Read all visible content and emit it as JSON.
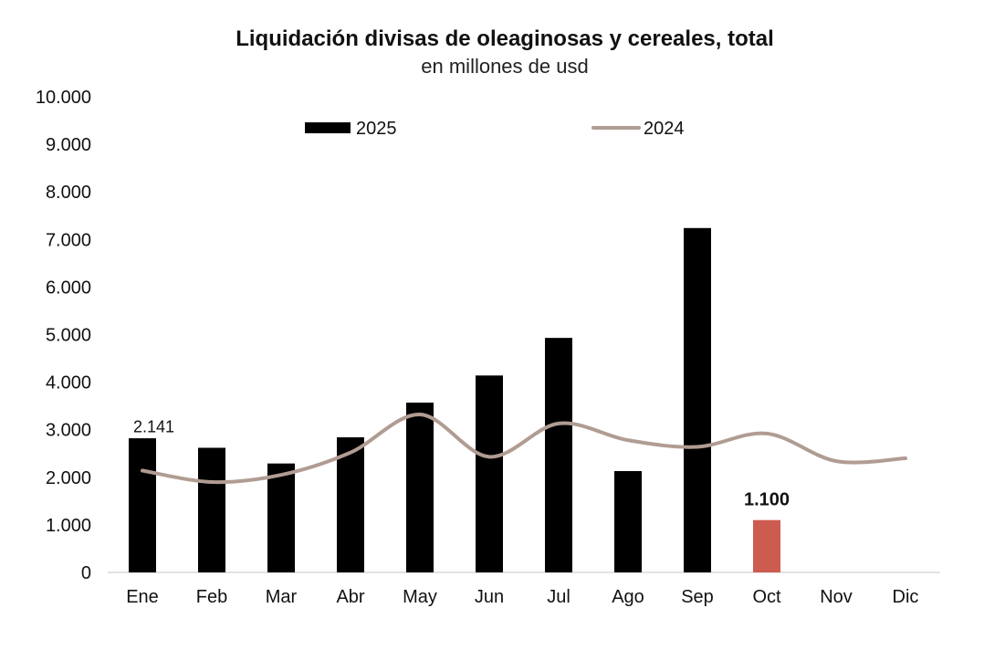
{
  "chart_data": {
    "type": "bar",
    "title": "Liquidación divisas de oleaginosas y cereales, total",
    "subtitle": "en millones de usd",
    "categories": [
      "Ene",
      "Feb",
      "Mar",
      "Abr",
      "May",
      "Jun",
      "Jul",
      "Ago",
      "Sep",
      "Oct",
      "Nov",
      "Dic"
    ],
    "series": [
      {
        "name": "2025",
        "type": "bar",
        "color": "#000000",
        "values": [
          2820,
          2620,
          2290,
          2840,
          3570,
          4140,
          4930,
          2130,
          7240,
          1100,
          null,
          null
        ],
        "highlight": {
          "index": 9,
          "color": "#CD5C50"
        }
      },
      {
        "name": "2024",
        "type": "line",
        "color": "#B09C92",
        "values": [
          2141,
          1900,
          2050,
          2520,
          3320,
          2430,
          3130,
          2780,
          2640,
          2920,
          2340,
          2400
        ]
      }
    ],
    "data_labels": [
      {
        "series": "2025",
        "index": 9,
        "text": "1.100",
        "bold": true
      },
      {
        "series": "2024",
        "index": 0,
        "text": "2.141",
        "bold": false
      }
    ],
    "ylim": [
      0,
      10000
    ],
    "yticks": [
      "0",
      "1.000",
      "2.000",
      "3.000",
      "4.000",
      "5.000",
      "6.000",
      "7.000",
      "8.000",
      "9.000",
      "10.000"
    ],
    "xlabel": "",
    "ylabel": "",
    "grid": false,
    "legend": "top-center"
  }
}
